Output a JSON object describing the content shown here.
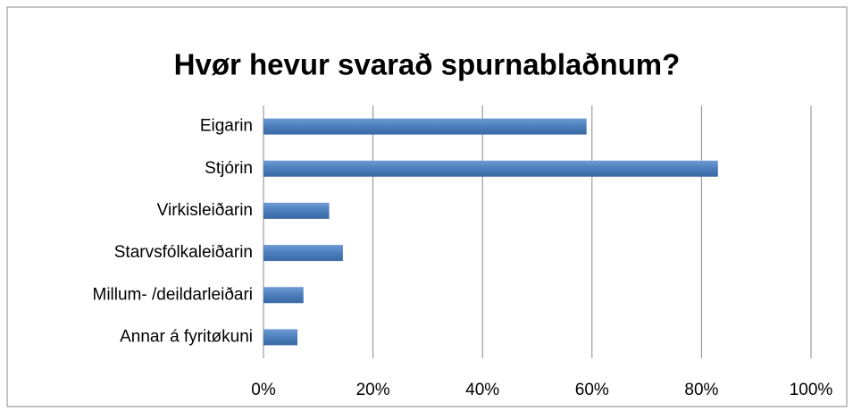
{
  "chart_data": {
    "type": "bar",
    "orientation": "horizontal",
    "title": "Hvør hevur svarað spurnablaðnum?",
    "categories": [
      "Eigarin",
      "Stjórin",
      "Virkisleiðarin",
      "Starvsfólkaleiðarin",
      "Millum- /deildarleiðari",
      "Annar á fyritøkuni"
    ],
    "values": [
      59,
      83,
      12,
      14.5,
      7.3,
      6.2
    ],
    "color": "#4a7ebb",
    "xlim": [
      0,
      100
    ],
    "xticks": [
      {
        "value": 0,
        "label": "0%"
      },
      {
        "value": 20,
        "label": "20%"
      },
      {
        "value": 40,
        "label": "40%"
      },
      {
        "value": 60,
        "label": "60%"
      },
      {
        "value": 80,
        "label": "80%"
      },
      {
        "value": 100,
        "label": "100%"
      }
    ],
    "grid": true
  }
}
